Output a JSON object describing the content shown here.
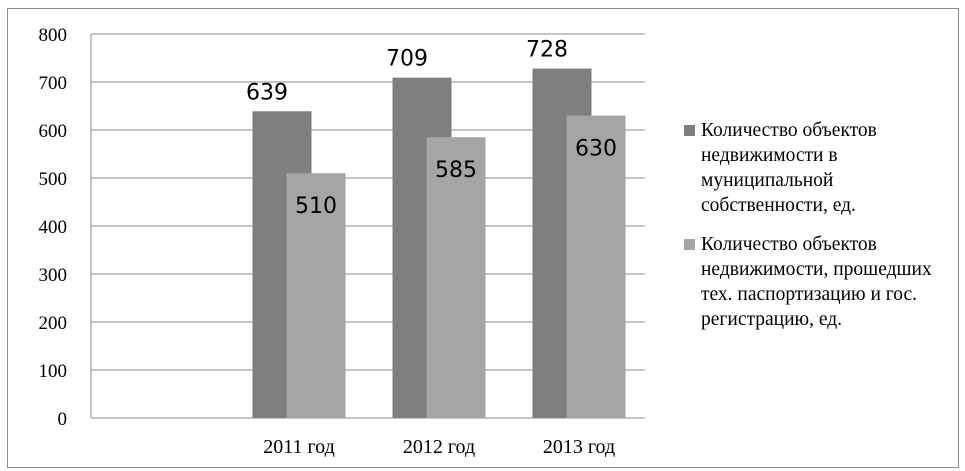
{
  "chart_data": {
    "type": "bar",
    "categories": [
      "2011 год",
      "2012 год",
      "2013 год"
    ],
    "series": [
      {
        "name": "Количество объектов недвижимости в муниципальной собственности, ед.",
        "values": [
          639,
          709,
          728
        ],
        "color": "#7f7f7f"
      },
      {
        "name": "Количество объектов недвижимости, прошедших тех. паспортизацию и гос. регистрацию, ед.",
        "values": [
          510,
          585,
          630
        ],
        "color": "#a5a5a5"
      }
    ],
    "ylim": [
      0,
      800
    ],
    "yticks": [
      "0",
      "100",
      "200",
      "300",
      "400",
      "500",
      "600",
      "700",
      "800"
    ],
    "grid": true,
    "legend_position": "right",
    "title": "",
    "xlabel": "",
    "ylabel": ""
  }
}
